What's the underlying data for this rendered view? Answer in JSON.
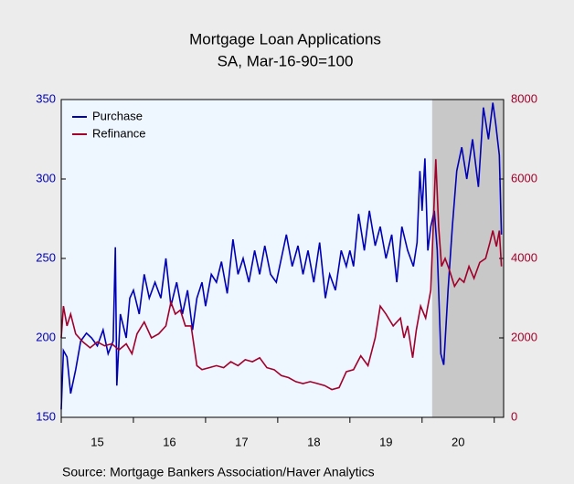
{
  "chart_data": {
    "type": "line",
    "title": "Mortgage Loan Applications",
    "subtitle": "SA, Mar-16-90=100",
    "source": "Source:  Mortgage Bankers Association/Haver Analytics",
    "xlim": [
      15,
      21.13
    ],
    "xticks": [
      {
        "value": 15.5,
        "label": "15"
      },
      {
        "value": 16.5,
        "label": "16"
      },
      {
        "value": 17.5,
        "label": "17"
      },
      {
        "value": 18.5,
        "label": "18"
      },
      {
        "value": 19.5,
        "label": "19"
      },
      {
        "value": 20.5,
        "label": "20"
      }
    ],
    "xminorticks": [
      15,
      16,
      17,
      18,
      19,
      20,
      21
    ],
    "ylim": [
      150,
      350
    ],
    "yticks": [
      150,
      200,
      250,
      300,
      350
    ],
    "y2lim": [
      0,
      8000
    ],
    "y2ticks": [
      0,
      2000,
      4000,
      6000,
      8000
    ],
    "shade": [
      20.14,
      21.13
    ],
    "legend": "top-left",
    "series": [
      {
        "name": "Purchase",
        "color": "#0000b4",
        "axis": "y",
        "x": [
          15.0,
          15.03,
          15.08,
          15.13,
          15.2,
          15.27,
          15.35,
          15.42,
          15.5,
          15.58,
          15.65,
          15.72,
          15.75,
          15.77,
          15.82,
          15.9,
          15.95,
          16.0,
          16.08,
          16.15,
          16.22,
          16.3,
          16.38,
          16.45,
          16.52,
          16.6,
          16.68,
          16.75,
          16.82,
          16.88,
          16.95,
          17.0,
          17.08,
          17.15,
          17.22,
          17.3,
          17.38,
          17.45,
          17.52,
          17.6,
          17.68,
          17.75,
          17.82,
          17.9,
          17.98,
          18.05,
          18.12,
          18.2,
          18.28,
          18.35,
          18.42,
          18.5,
          18.58,
          18.66,
          18.72,
          18.8,
          18.88,
          18.95,
          19.0,
          19.05,
          19.12,
          19.2,
          19.27,
          19.35,
          19.42,
          19.5,
          19.58,
          19.65,
          19.72,
          19.8,
          19.88,
          19.93,
          19.97,
          20.0,
          20.04,
          20.08,
          20.12,
          20.17,
          20.21,
          20.26,
          20.3,
          20.36,
          20.42,
          20.48,
          20.55,
          20.62,
          20.7,
          20.78,
          20.85,
          20.92,
          20.98,
          21.02,
          21.07,
          21.1
        ],
        "values": [
          155,
          192,
          188,
          165,
          180,
          198,
          203,
          200,
          195,
          205,
          190,
          198,
          257,
          170,
          215,
          200,
          225,
          230,
          215,
          240,
          225,
          235,
          225,
          250,
          220,
          235,
          215,
          230,
          205,
          225,
          235,
          220,
          240,
          235,
          248,
          228,
          262,
          240,
          250,
          235,
          255,
          240,
          258,
          240,
          235,
          250,
          265,
          245,
          258,
          240,
          255,
          235,
          260,
          225,
          240,
          230,
          255,
          245,
          255,
          245,
          278,
          255,
          280,
          258,
          270,
          250,
          265,
          235,
          270,
          255,
          245,
          260,
          305,
          280,
          313,
          255,
          270,
          280,
          255,
          190,
          183,
          230,
          270,
          305,
          320,
          300,
          325,
          295,
          345,
          325,
          348,
          335,
          315,
          265
        ]
      },
      {
        "name": "Refinance",
        "color": "#a0002a",
        "axis": "y2",
        "x": [
          15.0,
          15.03,
          15.08,
          15.13,
          15.2,
          15.3,
          15.4,
          15.5,
          15.6,
          15.7,
          15.8,
          15.9,
          15.98,
          16.05,
          16.15,
          16.25,
          16.35,
          16.45,
          16.52,
          16.58,
          16.65,
          16.72,
          16.8,
          16.88,
          16.95,
          17.05,
          17.15,
          17.25,
          17.35,
          17.45,
          17.55,
          17.65,
          17.75,
          17.85,
          17.95,
          18.05,
          18.15,
          18.25,
          18.35,
          18.45,
          18.55,
          18.65,
          18.75,
          18.85,
          18.95,
          19.05,
          19.15,
          19.25,
          19.35,
          19.42,
          19.5,
          19.6,
          19.7,
          19.75,
          19.8,
          19.87,
          19.92,
          19.98,
          20.05,
          20.12,
          20.19,
          20.23,
          20.27,
          20.32,
          20.38,
          20.45,
          20.52,
          20.58,
          20.65,
          20.72,
          20.8,
          20.88,
          20.94,
          20.98,
          21.03,
          21.07,
          21.1
        ],
        "values": [
          2000,
          2800,
          2300,
          2600,
          2100,
          1900,
          1750,
          1900,
          1800,
          1850,
          1700,
          1850,
          1600,
          2100,
          2400,
          2000,
          2100,
          2300,
          2900,
          2600,
          2700,
          2300,
          2300,
          1300,
          1200,
          1250,
          1300,
          1250,
          1400,
          1300,
          1450,
          1400,
          1500,
          1250,
          1200,
          1050,
          1000,
          900,
          850,
          900,
          850,
          800,
          700,
          750,
          1150,
          1200,
          1550,
          1300,
          2000,
          2800,
          2600,
          2300,
          2500,
          2000,
          2300,
          1500,
          2200,
          2800,
          2500,
          3200,
          6500,
          4800,
          3800,
          4000,
          3700,
          3300,
          3500,
          3400,
          3800,
          3500,
          3900,
          4000,
          4400,
          4700,
          4300,
          4700,
          3800
        ]
      }
    ]
  }
}
